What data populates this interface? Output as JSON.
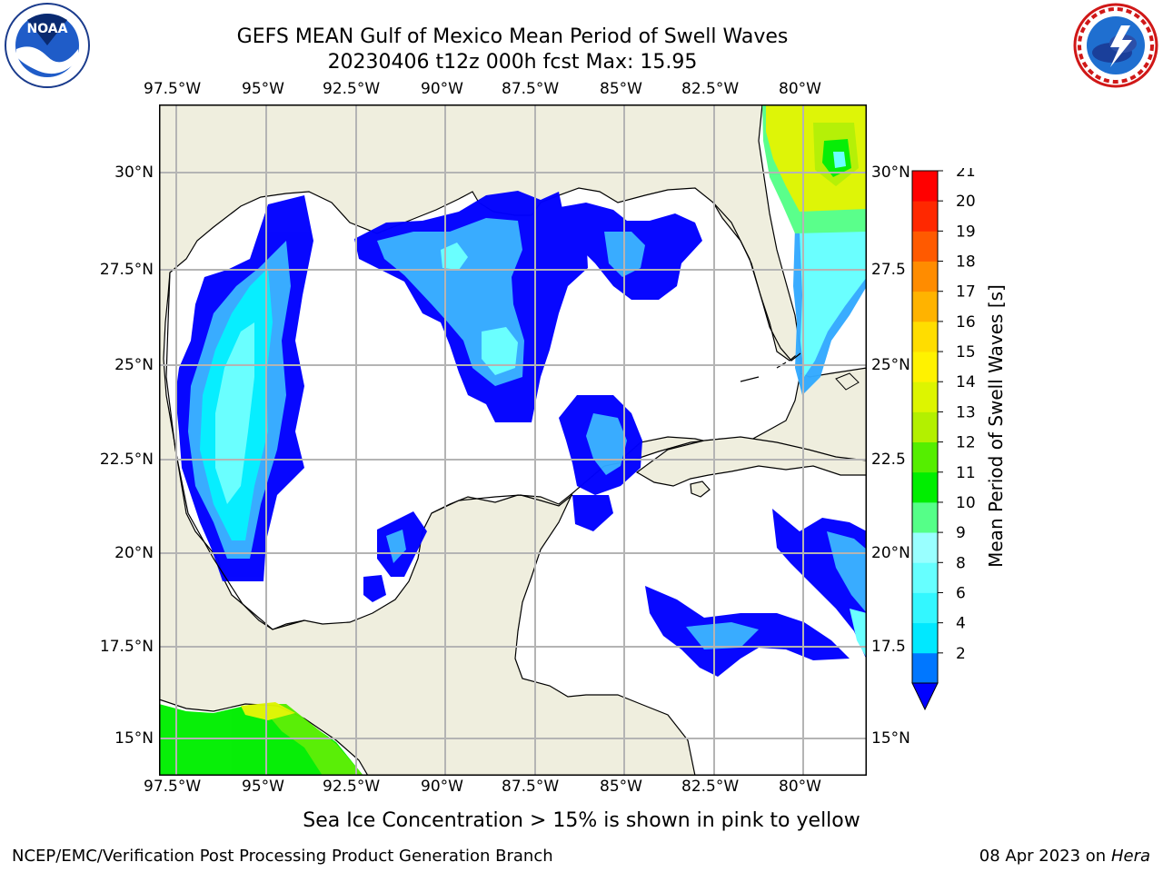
{
  "header": {
    "title_line1": "GEFS MEAN Gulf of Mexico Mean Period of Swell Waves",
    "title_line2": "20230406 t12z 000h fcst   Max: 15.95"
  },
  "logos": {
    "left": {
      "name": "NOAA",
      "ring_text": "NATIONAL OCEANIC AND ATMOSPHERIC ADMINISTRATION · U.S. DEPARTMENT OF COMMERCE"
    },
    "right": {
      "name": "NATIONAL WEATHER SERVICE"
    }
  },
  "map": {
    "lon_labels": [
      "97.5°W",
      "95°W",
      "92.5°W",
      "90°W",
      "87.5°W",
      "85°W",
      "82.5°W",
      "80°W"
    ],
    "lat_labels": [
      "30°N",
      "27.5°N",
      "25°N",
      "22.5°N",
      "20°N",
      "17.5°N",
      "15°N"
    ],
    "lat_labels_right": [
      "30°N",
      "27.5",
      "25°N",
      "22.5",
      "20°N",
      "17.5",
      "15°N"
    ],
    "colors": {
      "land": "#efeede",
      "water": "#ffffff",
      "grid": "#b4b4b4",
      "coast": "#000000"
    }
  },
  "colorbar": {
    "label": "Mean Period of Swell Waves [s]",
    "ticks": [
      "21",
      "20",
      "19",
      "18",
      "17",
      "16",
      "15",
      "14",
      "13",
      "12",
      "11",
      "10",
      "9",
      "8",
      "6",
      "4",
      "2"
    ],
    "colors_bottom_to_top": [
      "#0077ff",
      "#00e8ff",
      "#33f7ff",
      "#66ffff",
      "#99ffff",
      "#55ff88",
      "#00ee00",
      "#55ee00",
      "#b3f000",
      "#ddf500",
      "#fff200",
      "#ffdd00",
      "#ffb300",
      "#ff8c00",
      "#ff5a00",
      "#ff2800",
      "#ff0000"
    ],
    "extend_color": "#0000ff"
  },
  "footer": {
    "note": "Sea Ice Concentration > 15% is shown in pink to yellow",
    "credit": "NCEP/EMC/Verification Post Processing Product Generation Branch",
    "date": "08 Apr 2023 on",
    "host": "Hera"
  }
}
